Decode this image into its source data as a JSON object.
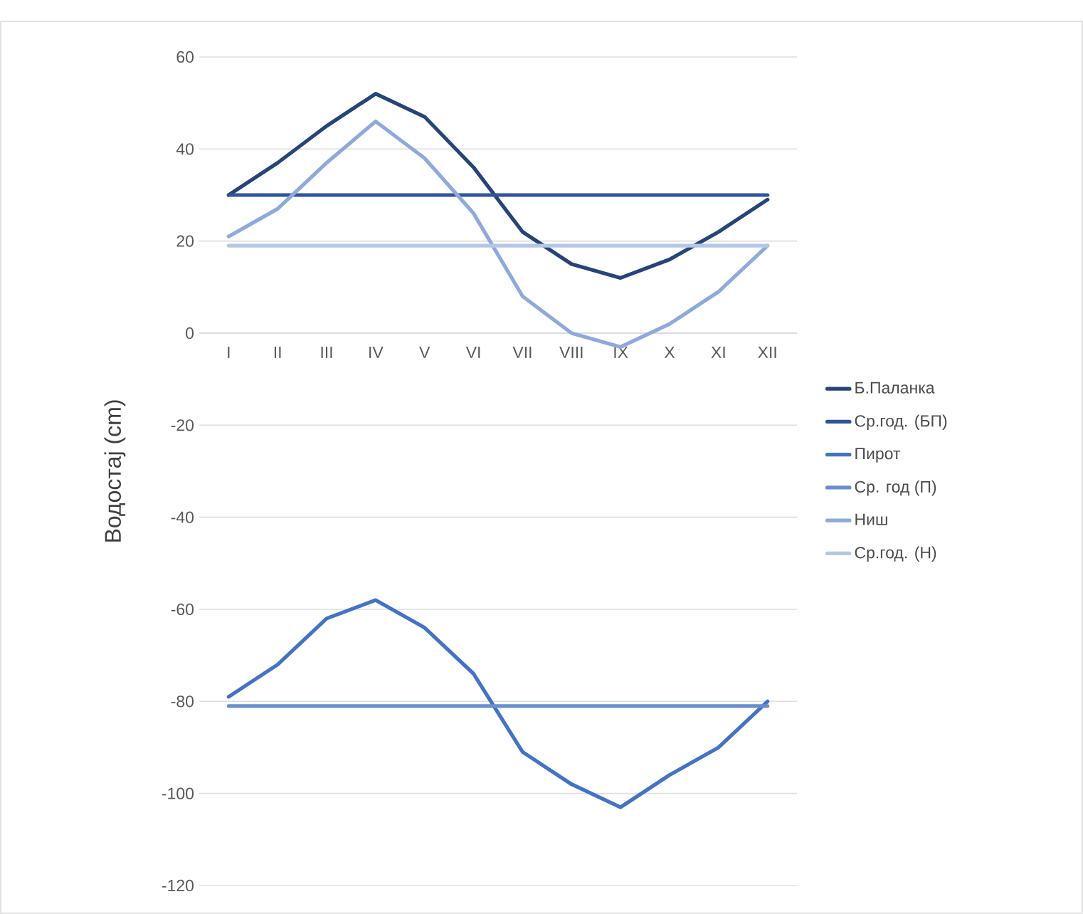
{
  "chart_data": {
    "type": "line",
    "ylabel": "Водостај (cm)",
    "categories": [
      "I",
      "II",
      "III",
      "IV",
      "V",
      "VI",
      "VII",
      "VIII",
      "IX",
      "X",
      "XI",
      "XII"
    ],
    "series": [
      {
        "name": "Б.Паланка",
        "color": "#264478",
        "values": [
          30,
          37,
          45,
          52,
          47,
          36,
          22,
          15,
          12,
          16,
          22,
          29
        ]
      },
      {
        "name": "Ср.год. (БП)",
        "color": "#2f5597",
        "values": [
          30,
          30,
          30,
          30,
          30,
          30,
          30,
          30,
          30,
          30,
          30,
          30
        ]
      },
      {
        "name": "Пирот",
        "color": "#4472c4",
        "values": [
          -79,
          -72,
          -62,
          -58,
          -64,
          -74,
          -91,
          -98,
          -103,
          -96,
          -90,
          -80
        ]
      },
      {
        "name": "Ср. год (П)",
        "color": "#698ed0",
        "values": [
          -81,
          -81,
          -81,
          -81,
          -81,
          -81,
          -81,
          -81,
          -81,
          -81,
          -81,
          -81
        ]
      },
      {
        "name": "Ниш",
        "color": "#8fa9dc",
        "values": [
          21,
          27,
          37,
          46,
          38,
          26,
          8,
          0,
          -3,
          2,
          9,
          19
        ]
      },
      {
        "name": "Ср.год. (Н)",
        "color": "#b4c7e7",
        "values": [
          19,
          19,
          19,
          19,
          19,
          19,
          19,
          19,
          19,
          19,
          19,
          19
        ]
      }
    ],
    "ylim": [
      -120,
      60
    ],
    "yticks": [
      -120,
      -100,
      -80,
      -60,
      -40,
      -20,
      0,
      20,
      40,
      60
    ],
    "grid": "y",
    "legend": "right"
  }
}
